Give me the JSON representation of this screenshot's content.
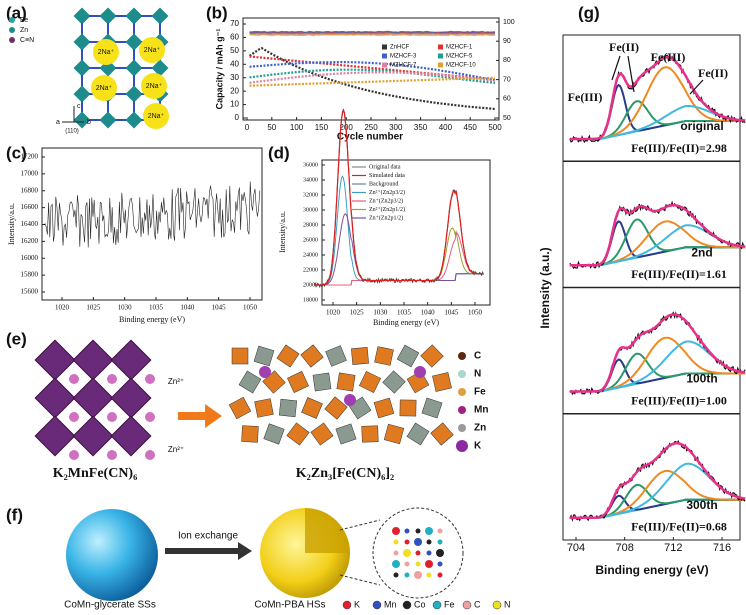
{
  "panel_a": {
    "label": "(a)",
    "legend": [
      "Fe",
      "Zn",
      "C≡N"
    ],
    "ions": [
      "2Na⁺",
      "2Na⁺",
      "2Na⁺",
      "2Na⁺",
      "2Na⁺"
    ],
    "axes": [
      "c",
      "a",
      "b",
      "(110)"
    ]
  },
  "panel_b": {
    "label": "(b)",
    "y_label": "Capacity / mAh g⁻¹",
    "x_label": "Cycle number",
    "xticks": [
      0,
      50,
      100,
      150,
      200,
      250,
      300,
      350,
      400,
      450,
      500
    ],
    "yticks": [
      0,
      10,
      20,
      30,
      40,
      50,
      60,
      70
    ],
    "y2ticks": [
      50,
      60,
      70,
      80,
      90,
      100
    ],
    "legend": [
      "ZnHCF",
      "MZHCF-1",
      "MZHCF-3",
      "MZHCF-5",
      "MZHCF-7",
      "MZHCF-10"
    ]
  },
  "panel_c": {
    "label": "(c)",
    "y_label": "Intensity/a.u.",
    "x_label": "Binding energy (eV)",
    "xticks": [
      1020,
      1025,
      1030,
      1035,
      1040,
      1045,
      1050
    ],
    "yticks": [
      15600,
      15800,
      16000,
      16200,
      16400,
      16600,
      16800,
      17000,
      17200
    ]
  },
  "panel_d": {
    "label": "(d)",
    "y_label": "Intensity/a.u.",
    "x_label": "Binding energy (eV)",
    "xticks": [
      1020,
      1025,
      1030,
      1035,
      1040,
      1045,
      1050
    ],
    "yticks": [
      18000,
      20000,
      22000,
      24000,
      26000,
      28000,
      30000,
      32000,
      34000,
      36000
    ],
    "legend": [
      "Original data",
      "Simulated data",
      "Background",
      "Zn²⁺(Zn2p3/2)",
      "Zn⁺(Zn2p3/2)",
      "Zn²⁺(Zn2p1/2)",
      "Zn⁺(Zn2p1/2)"
    ]
  },
  "panel_e": {
    "label": "(e)",
    "ions": [
      "Zn²⁺",
      "Zn²⁺"
    ],
    "formula_left": "K₂MnFe(CN)₆",
    "formula_right": "K₂Zn₃[Fe(CN)₆]₂",
    "legend": [
      "C",
      "N",
      "Fe",
      "Mn",
      "Zn",
      "K"
    ]
  },
  "panel_f": {
    "label": "(f)",
    "arrow_label": "Ion exchange",
    "left_caption": "CoMn-glycerate SSs",
    "right_caption": "CoMn-PBA HSs",
    "legend": [
      "K",
      "Mn",
      "Co",
      "Fe",
      "C",
      "N"
    ]
  },
  "panel_g": {
    "label": "(g)",
    "y_label": "Intensity (a.u.)",
    "x_label": "Binding energy (eV)",
    "xticks": [
      704,
      708,
      712,
      716
    ],
    "peaks": [
      "Fe(III)",
      "Fe(II)",
      "Fe(III)",
      "Fe(II)"
    ],
    "samples": [
      {
        "name": "original",
        "ratio": "Fe(III)/Fe(II)=2.98"
      },
      {
        "name": "2nd",
        "ratio": "Fe(III)/Fe(II)=1.61"
      },
      {
        "name": "100th",
        "ratio": "Fe(III)/Fe(II)=1.00"
      },
      {
        "name": "300th",
        "ratio": "Fe(III)/Fe(II)=0.68"
      }
    ]
  }
}
